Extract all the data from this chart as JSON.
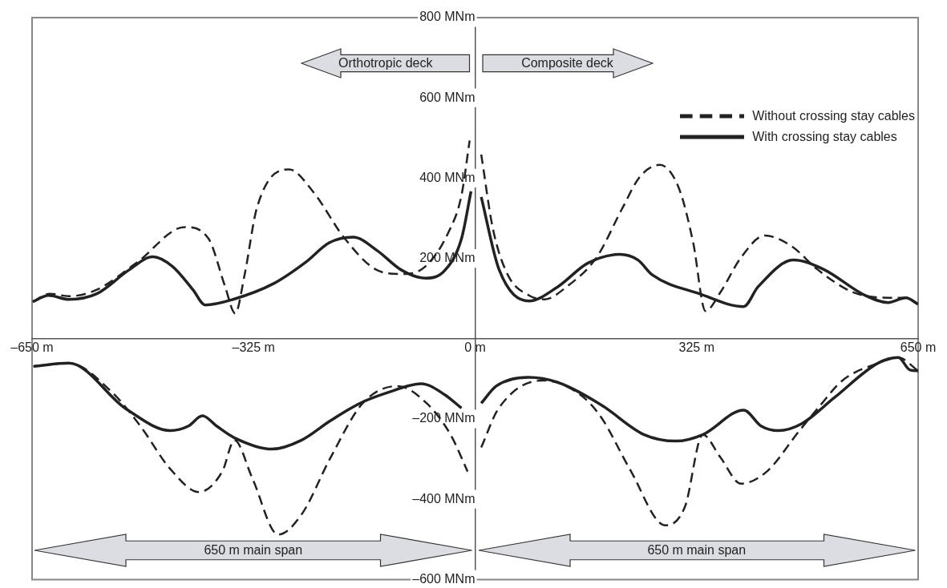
{
  "chart_data": {
    "type": "line",
    "marker": "none",
    "legend": "top right",
    "grid": false,
    "xlim": [
      -650,
      650
    ],
    "ylim": [
      -600,
      800
    ],
    "xticks": [
      {
        "value": -650,
        "label": "–650 m"
      },
      {
        "value": -325,
        "label": "–325 m"
      },
      {
        "value": 0,
        "label": "0 m"
      },
      {
        "value": 325,
        "label": "325 m"
      },
      {
        "value": 650,
        "label": "650 m"
      }
    ],
    "yticks": [
      {
        "value": 800,
        "label": "800 MNm"
      },
      {
        "value": 600,
        "label": "600 MNm"
      },
      {
        "value": 400,
        "label": "400 MNm"
      },
      {
        "value": 200,
        "label": "200 MNm"
      },
      {
        "value": -200,
        "label": "–200 MNm"
      },
      {
        "value": -400,
        "label": "–400 MNm"
      },
      {
        "value": -600,
        "label": "–600 MNm"
      }
    ],
    "annotations": [
      "Orthotropic deck",
      "Composite deck",
      "650 m main span",
      "650 m main span"
    ],
    "series": [
      {
        "name": "Without crossing stay cables",
        "color": "#222222",
        "line_style": "dashed",
        "x": [
          -649,
          -624,
          -596,
          -555,
          -496,
          -426,
          -391,
          -367,
          -352,
          -338,
          -320,
          -273,
          -238,
          -191,
          -144,
          -108,
          -73,
          -38,
          -20,
          -8,
          0,
          9,
          26,
          48,
          79,
          102,
          134,
          178,
          216,
          242,
          271,
          299,
          320,
          338,
          360,
          390,
          425,
          464,
          502,
          554,
          606,
          632,
          650,
          0,
          -648,
          -596,
          -533,
          -491,
          -447,
          -405,
          -371,
          -353,
          -327,
          -289,
          -255,
          -212,
          -165,
          -114,
          -71,
          -36,
          -11,
          0,
          9,
          34,
          99,
          154,
          185,
          227,
          279,
          308,
          334,
          360,
          390,
          428,
          475,
          505,
          539,
          591,
          621,
          650
        ],
        "values": [
          92,
          112,
          106,
          122,
          190,
          278,
          249,
          131,
          63,
          161,
          327,
          422,
          367,
          249,
          171,
          161,
          180,
          269,
          357,
          494,
          null,
          459,
          275,
          159,
          108,
          98,
          129,
          202,
          325,
          404,
          433,
          375,
          239,
          69,
          116,
          202,
          257,
          231,
          173,
          116,
          102,
          102,
          86,
          null,
          -69,
          -61,
          -133,
          -218,
          -325,
          -382,
          -331,
          -253,
          -347,
          -488,
          -439,
          -296,
          -161,
          -118,
          -161,
          -239,
          -331,
          null,
          -271,
          -175,
          -104,
          -139,
          -196,
          -325,
          -465,
          -418,
          -239,
          -296,
          -361,
          -331,
          -231,
          -169,
          -104,
          -61,
          -47,
          -80
        ]
      },
      {
        "name": "With crossing stay cables",
        "color": "#222222",
        "line_style": "solid",
        "x": [
          -649,
          -626,
          -596,
          -555,
          -508,
          -473,
          -444,
          -414,
          -396,
          -355,
          -296,
          -249,
          -214,
          -179,
          -144,
          -108,
          -73,
          -44,
          -20,
          -6,
          0,
          9,
          35,
          79,
          121,
          165,
          212,
          239,
          260,
          329,
          394,
          415,
          467,
          511,
          572,
          606,
          632,
          650,
          0,
          -648,
          -596,
          -512,
          -447,
          -421,
          -400,
          -379,
          -353,
          -298,
          -255,
          -212,
          -169,
          -126,
          -79,
          -45,
          -20,
          0,
          9,
          31,
          78,
          120,
          185,
          248,
          295,
          334,
          394,
          420,
          445,
          479,
          527,
          591,
          621,
          638,
          650
        ],
        "values": [
          92,
          108,
          98,
          112,
          171,
          204,
          180,
          122,
          84,
          98,
          137,
          190,
          239,
          253,
          220,
          171,
          151,
          171,
          249,
          367,
          null,
          353,
          173,
          94,
          129,
          188,
          210,
          196,
          159,
          112,
          80,
          129,
          196,
          173,
          108,
          90,
          102,
          86,
          null,
          -69,
          -61,
          -175,
          -229,
          -218,
          -192,
          -218,
          -247,
          -275,
          -253,
          -204,
          -161,
          -133,
          -112,
          -139,
          -173,
          null,
          -161,
          -118,
          -96,
          -108,
          -165,
          -239,
          -255,
          -239,
          -178,
          -218,
          -229,
          -212,
          -147,
          -61,
          -47,
          -78,
          -80
        ]
      }
    ]
  }
}
